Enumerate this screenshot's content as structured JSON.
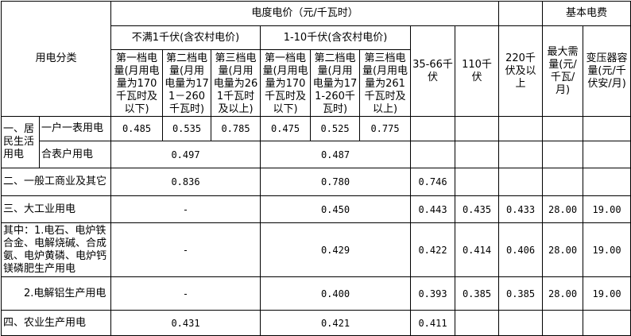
{
  "header": {
    "category": "用电分类",
    "energy_price": "电度电价（元/千瓦时）",
    "basic_fee": "基本电费",
    "below_1kv": "不满1千伏(含农村电价)",
    "kv_1_10": "1-10千伏(含农村电价)",
    "kv_35_66": "35-66千伏",
    "kv_110": "110千伏",
    "kv_220": "220千伏及以上",
    "max_demand": "最大需量(元/千瓦/月)",
    "transformer_capacity": "变压器容量(元/千伏安/月)",
    "tiers_below_1kv": [
      "第一档电量(月用电量为170千瓦时及以下)",
      "第二档电量(月用电量为171－260千瓦时)",
      "第三档电量(月用电量为261千瓦时及以上)"
    ],
    "tiers_1_10kv": [
      "第一档电量(月用电量为170千瓦时及以下)",
      "第二档电量(月用电量为171-260千瓦时)",
      "第三档电量(月用电量为261千瓦时及以上)"
    ]
  },
  "rows": {
    "residential": {
      "label": "一、居民生活用电",
      "per_household": {
        "label": "一户一表用电",
        "below_1kv": [
          "0.485",
          "0.535",
          "0.785"
        ],
        "kv_1_10": [
          "0.475",
          "0.525",
          "0.775"
        ]
      },
      "shared_meter": {
        "label": "合表户用电",
        "below_1kv": "0.497",
        "kv_1_10": "0.487"
      }
    },
    "general_commercial": {
      "label": "二、一般工商业及其它",
      "below_1kv": "0.836",
      "kv_1_10": "0.780",
      "kv_35_66": "0.746"
    },
    "large_industry": {
      "label": "三、大工业用电",
      "below_1kv": "-",
      "kv_1_10": "0.450",
      "kv_35_66": "0.443",
      "kv_110": "0.435",
      "kv_220": "0.433",
      "max_demand": "28.00",
      "transformer": "19.00"
    },
    "special_1": {
      "label": "其中：1.电石、电炉铁合金、电解烧碱、合成氨、电炉黄磷、电炉钙镁磷肥生产用电",
      "below_1kv": "-",
      "kv_1_10": "0.429",
      "kv_35_66": "0.422",
      "kv_110": "0.414",
      "kv_220": "0.406",
      "max_demand": "28.00",
      "transformer": "19.00"
    },
    "special_2": {
      "label": "　　2.电解铝生产用电",
      "below_1kv": "-",
      "kv_1_10": "0.400",
      "kv_35_66": "0.393",
      "kv_110": "0.385",
      "kv_220": "0.385",
      "max_demand": "28.00",
      "transformer": "19.00"
    },
    "agriculture": {
      "label": "四、农业生产用电",
      "below_1kv": "0.431",
      "kv_1_10": "0.421",
      "kv_35_66": "0.411"
    }
  }
}
